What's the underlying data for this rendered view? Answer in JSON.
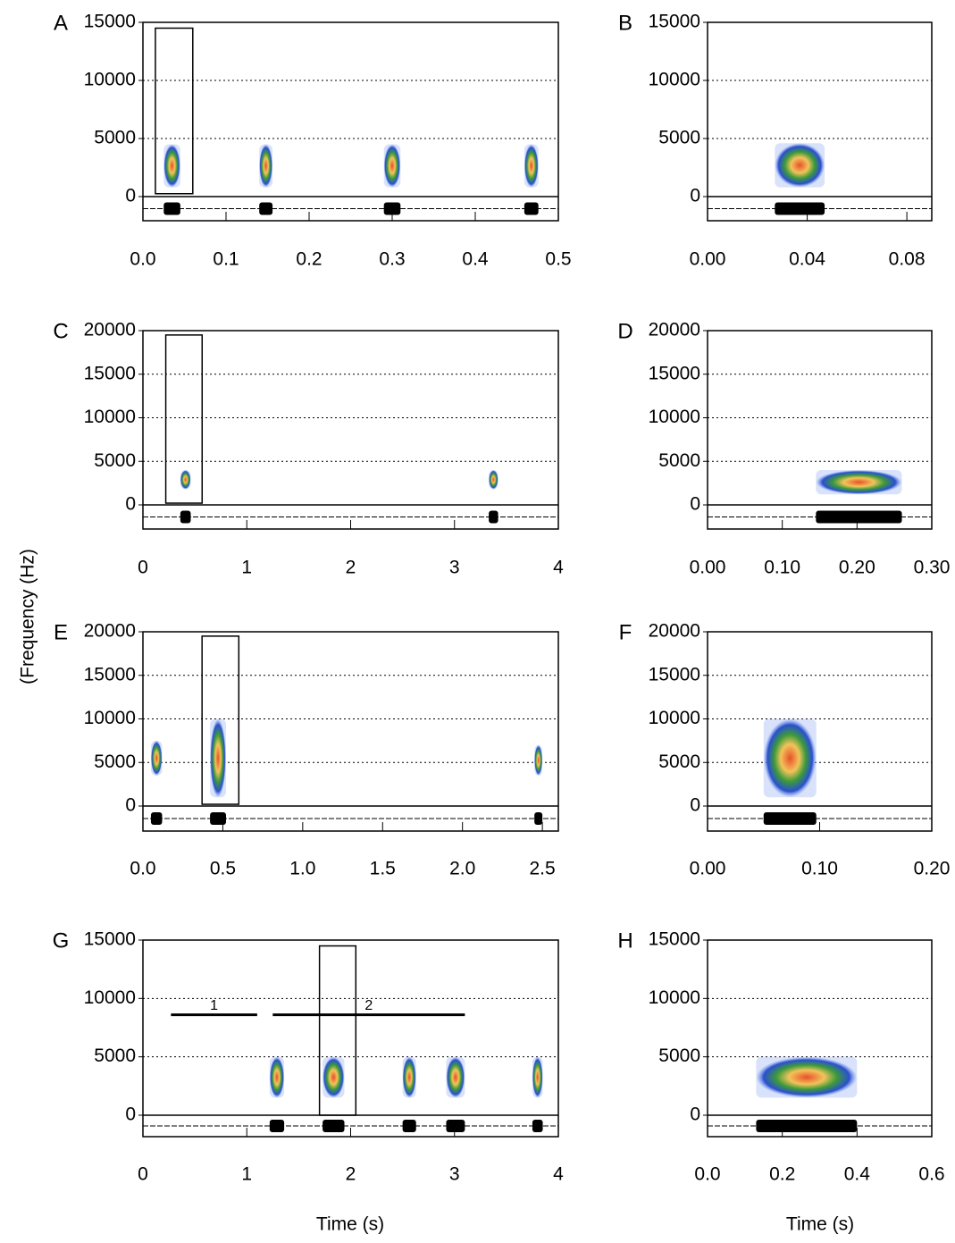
{
  "figure": {
    "ylabel": "(Frequency (Hz)",
    "xlabel": "Time (s)"
  },
  "chart_data": [
    {
      "type": "spectrogram",
      "label": "A",
      "xlim": [
        0,
        0.5
      ],
      "xticks": [
        {
          "value": 0,
          "label": "0.0"
        },
        0.1,
        0.2,
        0.3,
        0.4,
        0.5
      ],
      "ylim": [
        0,
        15000
      ],
      "yticks": [
        0,
        5000,
        10000,
        15000
      ],
      "grid": true,
      "calls": [
        {
          "start": 0.025,
          "end": 0.045,
          "fmin": 800,
          "fmax": 4500
        },
        {
          "start": 0.14,
          "end": 0.156,
          "fmin": 800,
          "fmax": 4500
        },
        {
          "start": 0.29,
          "end": 0.31,
          "fmin": 800,
          "fmax": 4500
        },
        {
          "start": 0.459,
          "end": 0.476,
          "fmin": 800,
          "fmax": 4500
        }
      ],
      "selection": {
        "start": 0.015,
        "end": 0.06,
        "fmin": 250,
        "fmax": 14500
      }
    },
    {
      "type": "spectrogram",
      "label": "B",
      "xlim": [
        0,
        0.09
      ],
      "xticks": [
        {
          "value": 0,
          "label": "0.00"
        },
        0.04,
        0.08
      ],
      "ylim": [
        0,
        15000
      ],
      "yticks": [
        0,
        5000,
        10000,
        15000
      ],
      "grid": true,
      "calls": [
        {
          "start": 0.027,
          "end": 0.047,
          "fmin": 800,
          "fmax": 4600
        }
      ]
    },
    {
      "type": "spectrogram",
      "label": "C",
      "xlim": [
        0,
        4
      ],
      "xticks": [
        0,
        1,
        2,
        3,
        4
      ],
      "ylim": [
        0,
        20000
      ],
      "yticks": [
        0,
        5000,
        10000,
        15000,
        20000
      ],
      "grid": true,
      "calls": [
        {
          "start": 0.36,
          "end": 0.46,
          "fmin": 1800,
          "fmax": 4000
        },
        {
          "start": 3.33,
          "end": 3.42,
          "fmin": 1800,
          "fmax": 4000
        }
      ],
      "selection": {
        "start": 0.22,
        "end": 0.57,
        "fmin": 200,
        "fmax": 19500
      }
    },
    {
      "type": "spectrogram",
      "label": "D",
      "xlim": [
        0,
        0.3
      ],
      "xticks": [
        {
          "value": 0,
          "label": "0.00"
        },
        {
          "value": 0.1,
          "label": "0.10"
        },
        {
          "value": 0.2,
          "label": "0.20"
        },
        {
          "value": 0.3,
          "label": "0.30"
        }
      ],
      "ylim": [
        0,
        20000
      ],
      "yticks": [
        0,
        5000,
        10000,
        15000,
        20000
      ],
      "grid": true,
      "calls": [
        {
          "start": 0.145,
          "end": 0.26,
          "fmin": 1200,
          "fmax": 4000
        }
      ]
    },
    {
      "type": "spectrogram",
      "label": "E",
      "xlim": [
        0,
        2.6
      ],
      "xticks": [
        {
          "value": 0,
          "label": "0.0"
        },
        0.5,
        {
          "value": 1,
          "label": "1.0"
        },
        1.5,
        {
          "value": 2,
          "label": "2.0"
        },
        2.5
      ],
      "ylim": [
        0,
        20000
      ],
      "yticks": [
        0,
        5000,
        10000,
        15000,
        20000
      ],
      "grid": true,
      "calls": [
        {
          "start": 0.05,
          "end": 0.12,
          "fmin": 3500,
          "fmax": 7500
        },
        {
          "start": 0.42,
          "end": 0.52,
          "fmin": 1000,
          "fmax": 10000
        },
        {
          "start": 2.45,
          "end": 2.5,
          "fmin": 3500,
          "fmax": 7000
        }
      ],
      "selection": {
        "start": 0.37,
        "end": 0.6,
        "fmin": 200,
        "fmax": 19500
      }
    },
    {
      "type": "spectrogram",
      "label": "F",
      "xlim": [
        0,
        0.2
      ],
      "xticks": [
        {
          "value": 0,
          "label": "0.00"
        },
        {
          "value": 0.1,
          "label": "0.10"
        },
        {
          "value": 0.2,
          "label": "0.20"
        }
      ],
      "ylim": [
        0,
        20000
      ],
      "yticks": [
        0,
        5000,
        10000,
        15000,
        20000
      ],
      "grid": true,
      "calls": [
        {
          "start": 0.05,
          "end": 0.097,
          "fmin": 1000,
          "fmax": 10000
        }
      ]
    },
    {
      "type": "spectrogram",
      "label": "G",
      "xlim": [
        0,
        4
      ],
      "xticks": [
        0,
        1,
        2,
        3,
        4
      ],
      "ylim": [
        0,
        15000
      ],
      "yticks": [
        0,
        5000,
        10000,
        15000
      ],
      "grid": true,
      "calls": [
        {
          "start": 1.22,
          "end": 1.36,
          "fmin": 1500,
          "fmax": 5000
        },
        {
          "start": 1.73,
          "end": 1.94,
          "fmin": 1500,
          "fmax": 5000
        },
        {
          "start": 2.5,
          "end": 2.63,
          "fmin": 1500,
          "fmax": 5000
        },
        {
          "start": 2.92,
          "end": 3.1,
          "fmin": 1500,
          "fmax": 5000
        },
        {
          "start": 3.75,
          "end": 3.85,
          "fmin": 1500,
          "fmax": 5000
        }
      ],
      "selection": {
        "start": 1.7,
        "end": 2.05,
        "fmin": 0,
        "fmax": 14500
      },
      "phrases": [
        {
          "label": "1",
          "start": 0.27,
          "end": 1.1,
          "y": 8600
        },
        {
          "label": "2",
          "start": 1.25,
          "end": 3.1,
          "y": 8600
        }
      ]
    },
    {
      "type": "spectrogram",
      "label": "H",
      "xlim": [
        0,
        0.6
      ],
      "xticks": [
        {
          "value": 0,
          "label": "0.0"
        },
        0.2,
        0.4,
        0.6
      ],
      "ylim": [
        0,
        15000
      ],
      "yticks": [
        0,
        5000,
        10000,
        15000
      ],
      "grid": true,
      "calls": [
        {
          "start": 0.13,
          "end": 0.4,
          "fmin": 1500,
          "fmax": 5000
        }
      ]
    }
  ]
}
